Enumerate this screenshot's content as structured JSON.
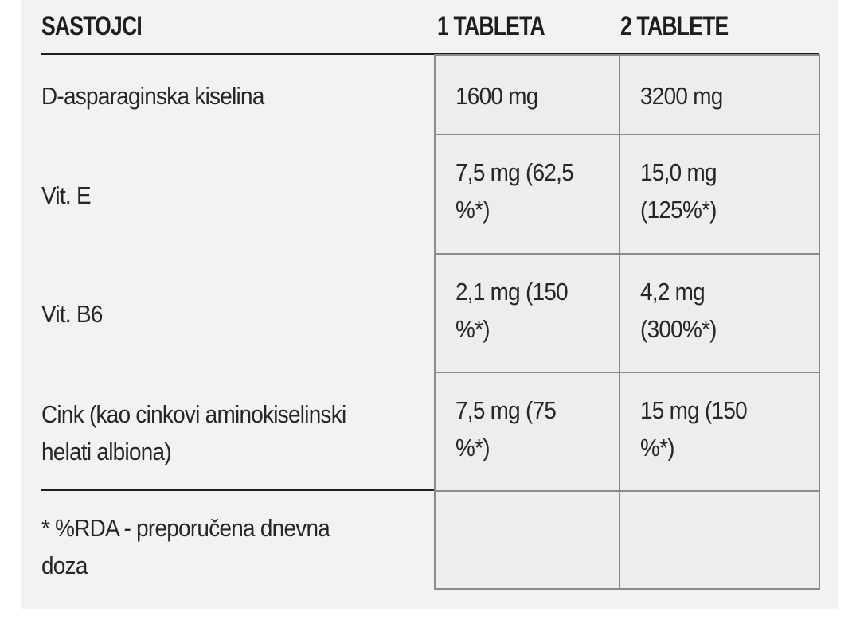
{
  "headers": {
    "ingredient": "SASTOJCI",
    "one_tablet": "1 TABLETA",
    "two_tablets": "2 TABLETE"
  },
  "rows": [
    {
      "ingredient": "D-asparaginska kiselina",
      "one": "1600 mg",
      "two": "3200 mg"
    },
    {
      "ingredient": "Vit. E",
      "one": "7,5 mg (62,5\n%*)",
      "two": "15,0 mg\n(125%*)"
    },
    {
      "ingredient": "Vit. B6",
      "one": "2,1 mg (150\n%*)",
      "two": "4,2 mg\n(300%*)"
    },
    {
      "ingredient": "Cink (kao cinkovi aminokiselinski\nhelati albiona)",
      "one": "7,5 mg (75\n%*)",
      "two": "15 mg (150\n%*)"
    }
  ],
  "footnote": "* %RDA - preporučena dnevna\ndoza"
}
